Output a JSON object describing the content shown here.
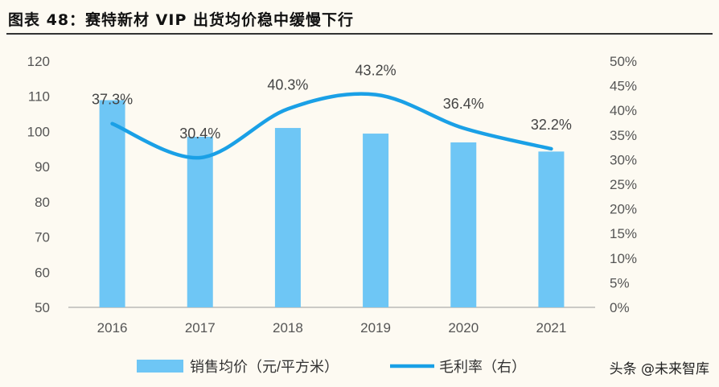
{
  "title": "图表 48：赛特新材 VIP 出货均价稳中缓慢下行",
  "watermark": "头条 @未来智库",
  "chart_data": {
    "type": "bar+line",
    "categories": [
      "2016",
      "2017",
      "2018",
      "2019",
      "2020",
      "2021"
    ],
    "series": [
      {
        "name": "销售均价（元/平方米）",
        "type": "bar",
        "axis": "left",
        "values": [
          108.9,
          98.5,
          101,
          99.4,
          96.9,
          94.3
        ],
        "color": "#6ec6f5"
      },
      {
        "name": "毛利率（右）",
        "type": "line",
        "axis": "right",
        "values": [
          37.3,
          30.4,
          40.3,
          43.2,
          36.4,
          32.2
        ],
        "labels": [
          "37.3%",
          "30.4%",
          "40.3%",
          "43.2%",
          "36.4%",
          "32.2%"
        ],
        "color": "#1aa0e6"
      }
    ],
    "ylim": [
      50,
      120
    ],
    "yticks": [
      "50",
      "60",
      "70",
      "80",
      "90",
      "100",
      "110",
      "120"
    ],
    "y2lim": [
      0,
      50
    ],
    "y2ticks": [
      "0%",
      "5%",
      "10%",
      "15%",
      "20%",
      "25%",
      "30%",
      "35%",
      "40%",
      "45%",
      "50%"
    ],
    "legend": "bottom",
    "grid": false
  }
}
